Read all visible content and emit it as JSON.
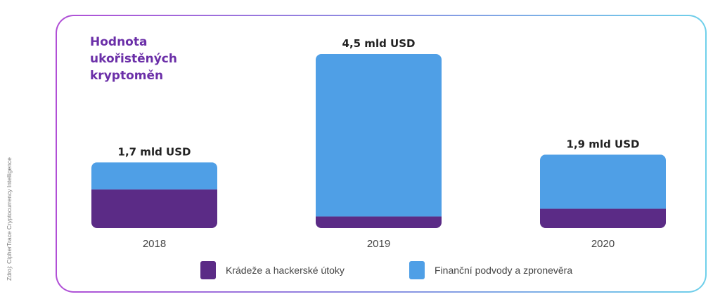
{
  "source_note": "Zdroj: CipherTrace Cryptocurrency Intelligence",
  "colors": {
    "theft": "#5b2b86",
    "fraud": "#4f9fe6",
    "label": "#222222",
    "axis_label": "#444444"
  },
  "chart_data": {
    "type": "bar",
    "stacked": true,
    "title": "Hodnota ukořistěných kryptoměn",
    "categories": [
      "2018",
      "2019",
      "2020"
    ],
    "totals_labels": [
      "1,7 mld USD",
      "4,5 mld USD",
      "1,9 mld USD"
    ],
    "totals": [
      1.7,
      4.5,
      1.9
    ],
    "series": [
      {
        "name": "Krádeže a hackerské útoky",
        "values": [
          1.0,
          0.3,
          0.5
        ]
      },
      {
        "name": "Finanční podvody a zpronevěra",
        "values": [
          0.7,
          4.2,
          1.4
        ]
      }
    ],
    "ylim": [
      0,
      4.5
    ],
    "grid": false,
    "legend_position": "bottom"
  }
}
